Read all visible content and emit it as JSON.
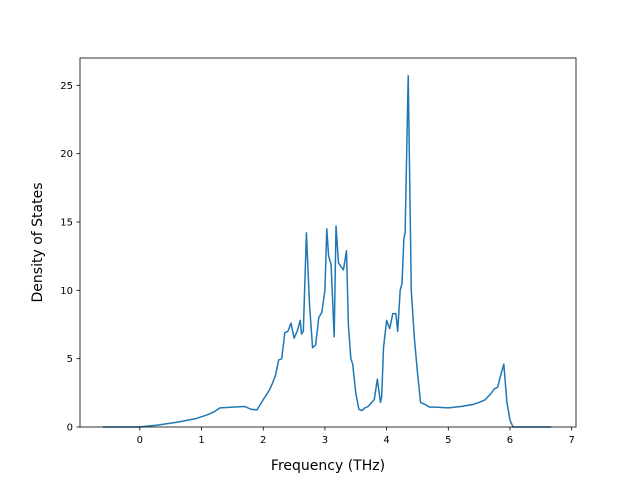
{
  "chart_data": {
    "type": "line",
    "title": "",
    "xlabel": "Frequency (THz)",
    "ylabel": "Density of States",
    "xlim": [
      -0.97,
      7.07
    ],
    "ylim": [
      0,
      27
    ],
    "xticks": [
      0,
      1,
      2,
      3,
      4,
      5,
      6,
      7
    ],
    "yticks": [
      0,
      5,
      10,
      15,
      20,
      25
    ],
    "grid": false,
    "legend": "none",
    "series": [
      {
        "color": "#1f77b4",
        "x": [
          -0.6,
          0.0,
          0.3,
          0.6,
          0.9,
          1.1,
          1.2,
          1.3,
          1.5,
          1.7,
          1.8,
          1.9,
          2.0,
          2.1,
          2.15,
          2.2,
          2.25,
          2.3,
          2.35,
          2.4,
          2.45,
          2.5,
          2.55,
          2.6,
          2.62,
          2.65,
          2.7,
          2.75,
          2.8,
          2.85,
          2.9,
          2.95,
          3.0,
          3.03,
          3.06,
          3.1,
          3.15,
          3.18,
          3.22,
          3.25,
          3.3,
          3.35,
          3.38,
          3.42,
          3.45,
          3.5,
          3.55,
          3.6,
          3.65,
          3.7,
          3.8,
          3.85,
          3.9,
          3.92,
          3.95,
          4.0,
          4.05,
          4.1,
          4.15,
          4.18,
          4.22,
          4.25,
          4.28,
          4.3,
          4.35,
          4.4,
          4.45,
          4.5,
          4.55,
          4.6,
          4.7,
          4.8,
          5.0,
          5.2,
          5.4,
          5.5,
          5.6,
          5.7,
          5.75,
          5.8,
          5.85,
          5.9,
          5.95,
          6.0,
          6.05,
          6.2,
          6.67
        ],
        "y": [
          0,
          0,
          0.15,
          0.35,
          0.6,
          0.9,
          1.1,
          1.4,
          1.45,
          1.5,
          1.3,
          1.25,
          2.0,
          2.7,
          3.2,
          3.8,
          4.9,
          5.0,
          6.9,
          7.0,
          7.6,
          6.5,
          7.0,
          7.8,
          6.8,
          7.0,
          14.2,
          9.0,
          5.8,
          6.0,
          8.0,
          8.4,
          10.0,
          14.5,
          12.5,
          11.9,
          6.6,
          14.7,
          12.0,
          11.8,
          11.5,
          12.9,
          7.5,
          5.0,
          4.6,
          2.5,
          1.3,
          1.2,
          1.4,
          1.5,
          2.0,
          3.5,
          1.8,
          2.2,
          5.8,
          7.8,
          7.2,
          8.3,
          8.3,
          7.0,
          10.0,
          10.5,
          13.8,
          14.2,
          25.7,
          10.0,
          6.5,
          4.0,
          1.8,
          1.7,
          1.45,
          1.45,
          1.4,
          1.5,
          1.65,
          1.8,
          2.0,
          2.5,
          2.8,
          2.9,
          3.8,
          4.6,
          1.8,
          0.5,
          0,
          0,
          0
        ]
      }
    ]
  }
}
